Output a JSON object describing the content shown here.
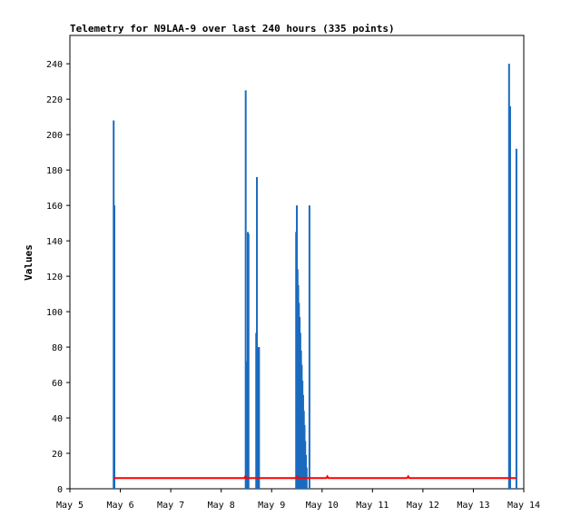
{
  "chart_data": {
    "type": "bar",
    "title": "Telemetry for N9LAA-9 over last 240 hours (335 points)",
    "xlabel": "",
    "ylabel": "Values",
    "xlim": [
      "2024-05-05 00:00",
      "2024-05-14 00:00"
    ],
    "ylim": [
      0,
      256
    ],
    "x_ticks": [
      "May 5",
      "May 6",
      "May 7",
      "May 8",
      "May 9",
      "May 10",
      "May 11",
      "May 12",
      "May 13",
      "May 14"
    ],
    "y_ticks": [
      0,
      20,
      40,
      60,
      80,
      100,
      120,
      140,
      160,
      180,
      200,
      220,
      240
    ],
    "grid": false,
    "legend": "none",
    "series": [
      {
        "type": "bar",
        "color": "#1a6bbf",
        "points": [
          {
            "x": "2024-05-05 20:50",
            "y": 208
          },
          {
            "x": "2024-05-05 21:10",
            "y": 160
          },
          {
            "x": "2024-05-08 11:40",
            "y": 225
          },
          {
            "x": "2024-05-08 12:10",
            "y": 72
          },
          {
            "x": "2024-05-08 12:40",
            "y": 145
          },
          {
            "x": "2024-05-08 13:00",
            "y": 144
          },
          {
            "x": "2024-05-08 16:40",
            "y": 88
          },
          {
            "x": "2024-05-08 17:00",
            "y": 176
          },
          {
            "x": "2024-05-08 17:40",
            "y": 80
          },
          {
            "x": "2024-05-08 18:00",
            "y": 80
          },
          {
            "x": "2024-05-09 11:40",
            "y": 145
          },
          {
            "x": "2024-05-09 12:00",
            "y": 160
          },
          {
            "x": "2024-05-09 12:20",
            "y": 124
          },
          {
            "x": "2024-05-09 12:40",
            "y": 115
          },
          {
            "x": "2024-05-09 13:00",
            "y": 105
          },
          {
            "x": "2024-05-09 13:20",
            "y": 97
          },
          {
            "x": "2024-05-09 13:40",
            "y": 88
          },
          {
            "x": "2024-05-09 14:00",
            "y": 78
          },
          {
            "x": "2024-05-09 14:20",
            "y": 70
          },
          {
            "x": "2024-05-09 14:40",
            "y": 61
          },
          {
            "x": "2024-05-09 15:00",
            "y": 53
          },
          {
            "x": "2024-05-09 15:20",
            "y": 44
          },
          {
            "x": "2024-05-09 15:40",
            "y": 36
          },
          {
            "x": "2024-05-09 16:00",
            "y": 27
          },
          {
            "x": "2024-05-09 16:20",
            "y": 19
          },
          {
            "x": "2024-05-09 16:40",
            "y": 12
          },
          {
            "x": "2024-05-09 18:00",
            "y": 160
          },
          {
            "x": "2024-05-13 17:00",
            "y": 240
          },
          {
            "x": "2024-05-13 17:30",
            "y": 216
          },
          {
            "x": "2024-05-13 20:30",
            "y": 192
          }
        ]
      },
      {
        "type": "line",
        "color": "#ff0000",
        "points": [
          {
            "x": "2024-05-05 20:50",
            "y": 6
          },
          {
            "x": "2024-05-08 11:00",
            "y": 6
          },
          {
            "x": "2024-05-08 11:30",
            "y": 7
          },
          {
            "x": "2024-05-08 12:00",
            "y": 6
          },
          {
            "x": "2024-05-09 11:30",
            "y": 6
          },
          {
            "x": "2024-05-09 12:00",
            "y": 7
          },
          {
            "x": "2024-05-09 12:30",
            "y": 6
          },
          {
            "x": "2024-05-10 02:00",
            "y": 6
          },
          {
            "x": "2024-05-10 02:30",
            "y": 7
          },
          {
            "x": "2024-05-10 03:00",
            "y": 6
          },
          {
            "x": "2024-05-11 16:30",
            "y": 6
          },
          {
            "x": "2024-05-11 17:00",
            "y": 7
          },
          {
            "x": "2024-05-11 17:30",
            "y": 6
          },
          {
            "x": "2024-05-13 20:30",
            "y": 6
          }
        ]
      }
    ]
  }
}
